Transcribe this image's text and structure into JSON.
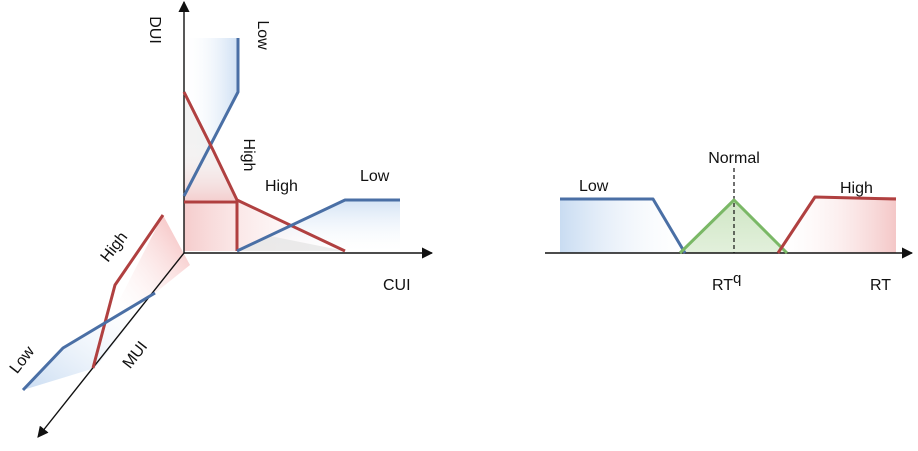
{
  "left_diagram": {
    "axes": {
      "dui": "DUI",
      "cui": "CUI",
      "mui": "MUI"
    },
    "labels": {
      "dui_low": "Low",
      "dui_high": "High",
      "cui_high": "High",
      "cui_low": "Low",
      "mui_high": "High",
      "mui_low": "Low"
    }
  },
  "right_diagram": {
    "axis": "RT",
    "threshold": "RT",
    "threshold_superscript": "q",
    "labels": {
      "low": "Low",
      "normal": "Normal",
      "high": "High"
    }
  },
  "colors": {
    "low": "#4a6fa5",
    "high": "#b04040",
    "normal": "#7ab866",
    "low_fill": "#c9dcf2",
    "high_fill": "#f4c7c7",
    "normal_fill": "#cfe6c4",
    "axis": "#111111"
  }
}
